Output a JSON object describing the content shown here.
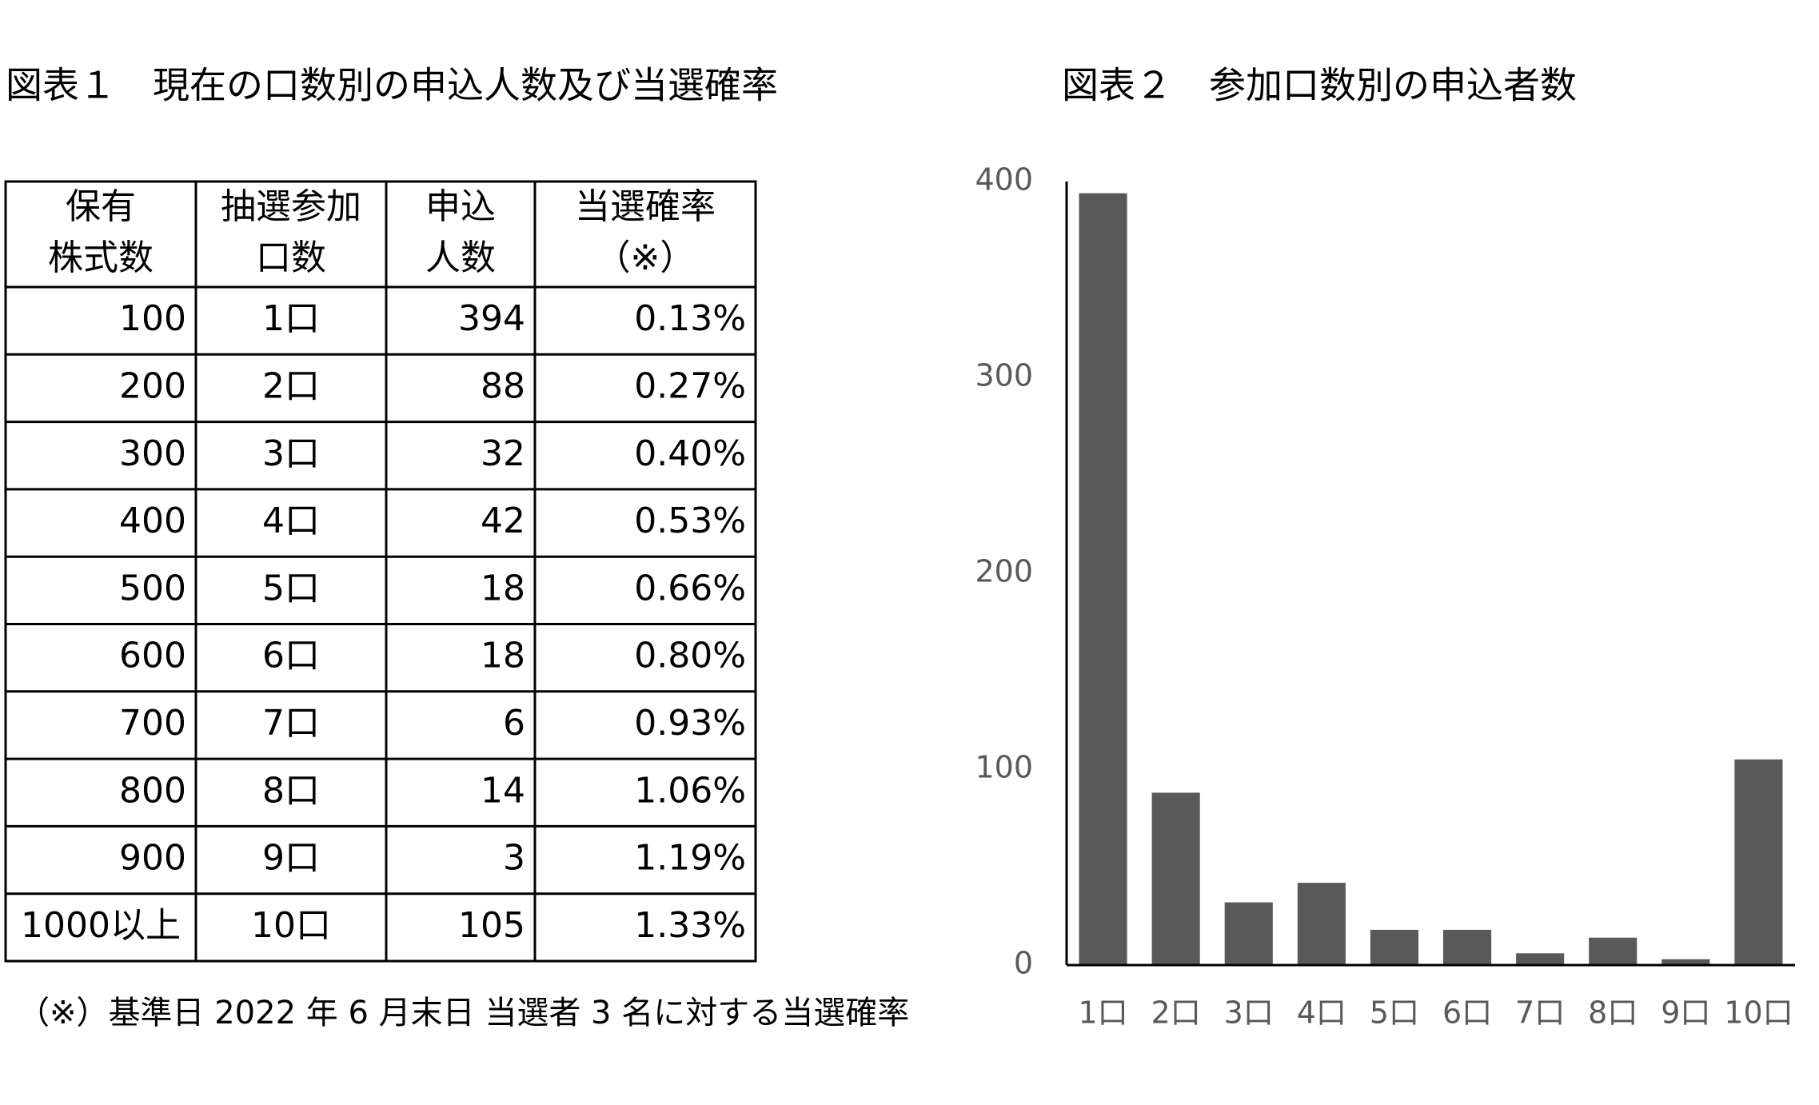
{
  "table_title": "図表１　現在の口数別の申込人数及び当選確率",
  "table": {
    "header": [
      [
        "保有",
        "株式数"
      ],
      [
        "抽選参加",
        "口数"
      ],
      [
        "申込",
        "人数"
      ],
      [
        "当選確率",
        "（※）"
      ]
    ],
    "rows": [
      [
        "100",
        "1口",
        "394",
        "0.13%"
      ],
      [
        "200",
        "2口",
        "88",
        "0.27%"
      ],
      [
        "300",
        "3口",
        "32",
        "0.40%"
      ],
      [
        "400",
        "4口",
        "42",
        "0.53%"
      ],
      [
        "500",
        "5口",
        "18",
        "0.66%"
      ],
      [
        "600",
        "6口",
        "18",
        "0.80%"
      ],
      [
        "700",
        "7口",
        "6",
        "0.93%"
      ],
      [
        "800",
        "8口",
        "14",
        "1.06%"
      ],
      [
        "900",
        "9口",
        "3",
        "1.19%"
      ],
      [
        "1000以上",
        "10口",
        "105",
        "1.33%"
      ]
    ]
  },
  "note": "（※）基準日 2022 年 6 月末日  当選者 3 名に対する当選確率",
  "chart_data": {
    "type": "bar",
    "title": "図表２　参加口数別の申込者数",
    "categories": [
      "1口",
      "2口",
      "3口",
      "4口",
      "5口",
      "6口",
      "7口",
      "8口",
      "9口",
      "10口"
    ],
    "values": [
      394,
      88,
      32,
      42,
      18,
      18,
      6,
      14,
      3,
      105
    ],
    "color": "#595959",
    "ylim": [
      0,
      400
    ],
    "yticks": [
      0,
      100,
      200,
      300,
      400
    ],
    "grid": false
  }
}
